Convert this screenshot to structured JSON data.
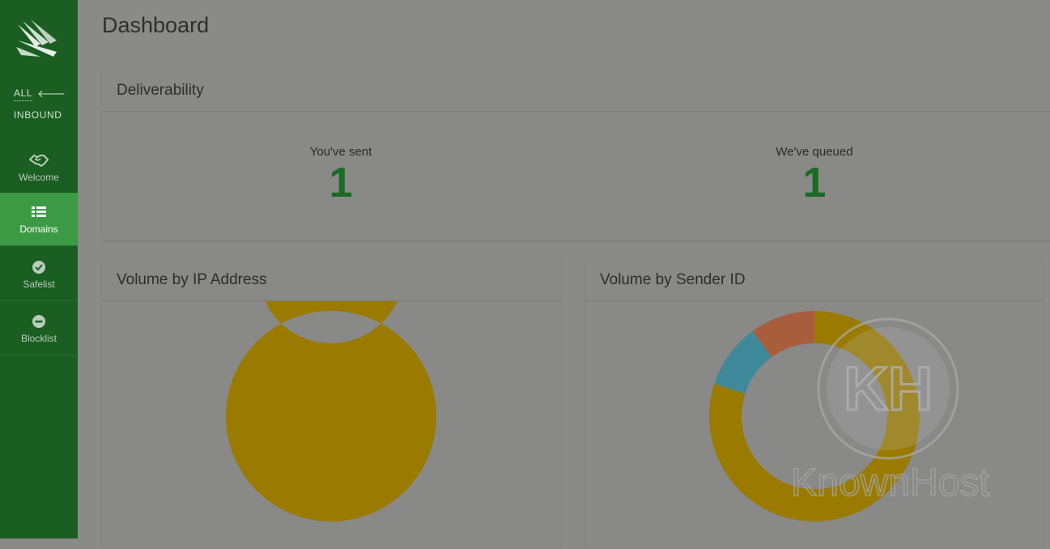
{
  "sidebar": {
    "switch": {
      "all_label": "ALL",
      "inbound_label": "INBOUND"
    },
    "items": [
      {
        "label": "Welcome",
        "icon": "handshake-icon",
        "active": false
      },
      {
        "label": "Domains",
        "icon": "list-icon",
        "active": true
      },
      {
        "label": "Safelist",
        "icon": "check-circle-icon",
        "active": false
      },
      {
        "label": "Blocklist",
        "icon": "minus-circle-icon",
        "active": false
      }
    ]
  },
  "main": {
    "title": "Dashboard",
    "deliverability": {
      "title": "Deliverability",
      "sent_label": "You've sent",
      "sent_value": "1",
      "queued_label": "We've queued",
      "queued_value": "1"
    },
    "volume_ip": {
      "title": "Volume by IP Address"
    },
    "volume_sender": {
      "title": "Volume by Sender ID"
    }
  },
  "watermark": {
    "text": "KnownHost",
    "monogram": "KH"
  },
  "colors": {
    "sidebar": "#1b5e22",
    "active_item": "#3c9a45",
    "stat_value": "#1a6b23",
    "chart_gold": "#9a7b00",
    "chart_teal": "#3f8a9a",
    "chart_orange": "#a85d3d"
  },
  "chart_data": [
    {
      "type": "pie",
      "title": "Volume by IP Address",
      "donut": true,
      "values": [
        1
      ]
    },
    {
      "type": "pie",
      "title": "Volume by Sender ID",
      "donut": true,
      "values": [
        0.8,
        0.1,
        0.1
      ]
    }
  ]
}
